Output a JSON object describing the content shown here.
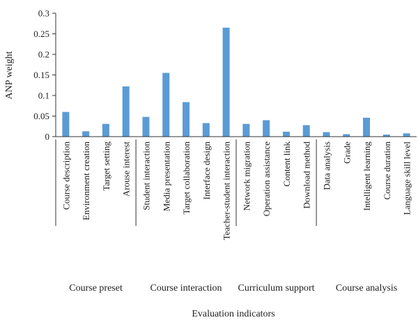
{
  "chart_data": {
    "type": "bar",
    "xlabel": "Evaluation indicators",
    "ylabel": "ANP weight",
    "ylim": [
      0,
      0.3
    ],
    "yticks": [
      "0",
      "0.05",
      "0.1",
      "0.15",
      "0.2",
      "0.25",
      "0.3"
    ],
    "grid": false,
    "bar_color": "#5b9bd5",
    "categories": [
      "Course description",
      "Environment creation",
      "Target setting",
      "Arouse interest",
      "Student interaction",
      "Media presentation",
      "Target collaboration",
      "Interface design",
      "Teacher-student interaction",
      "Network migration",
      "Operation assistance",
      "Content link",
      "Download method",
      "Data analysis",
      "Grade",
      "Intelligent learning",
      "Course duration",
      "Language skill level"
    ],
    "values": [
      0.06,
      0.013,
      0.031,
      0.122,
      0.048,
      0.155,
      0.084,
      0.033,
      0.265,
      0.031,
      0.04,
      0.012,
      0.028,
      0.011,
      0.006,
      0.046,
      0.005,
      0.008
    ],
    "groups": [
      {
        "name": "Course preset",
        "count": 4
      },
      {
        "name": "Course interaction",
        "count": 5
      },
      {
        "name": "Curriculum support",
        "count": 4
      },
      {
        "name": "Course analysis",
        "count": 5
      }
    ]
  }
}
